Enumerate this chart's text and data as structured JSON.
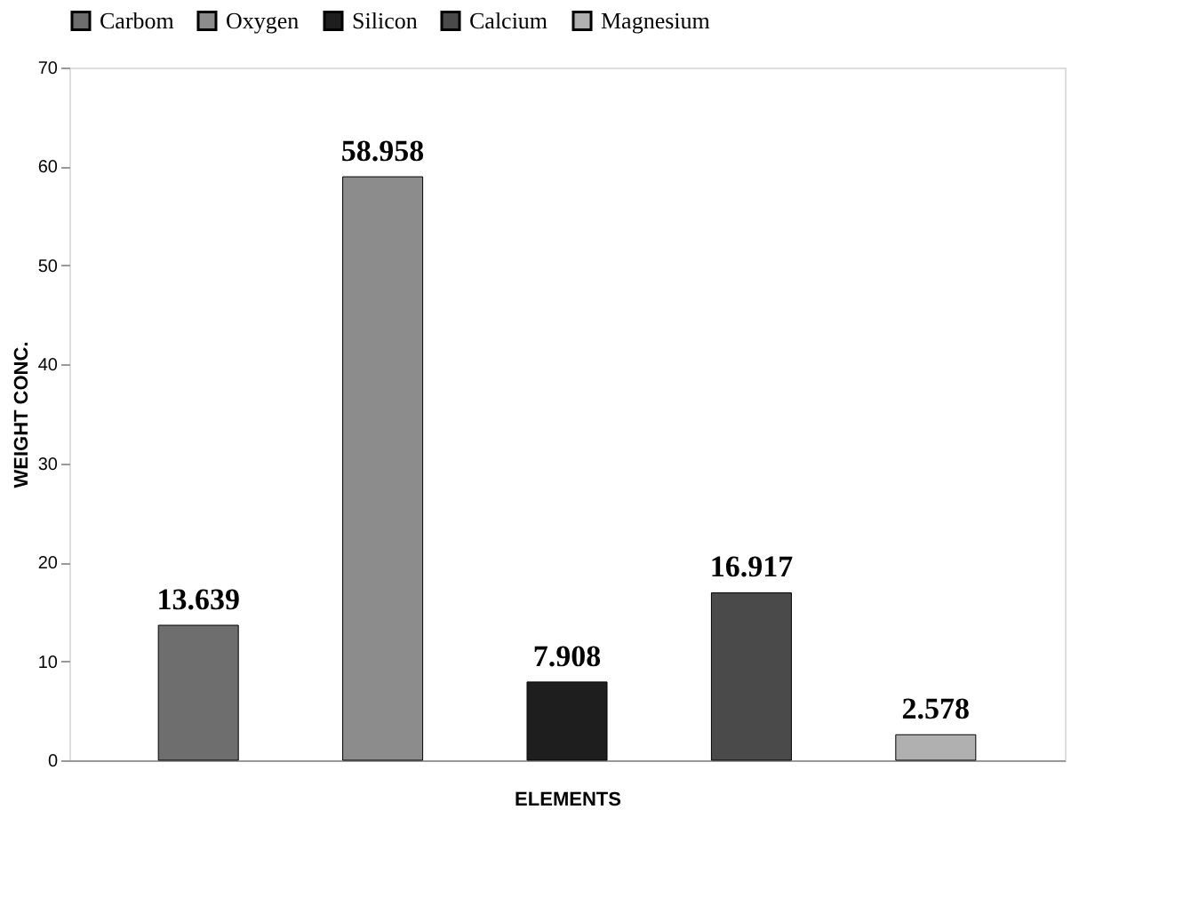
{
  "chart_data": {
    "type": "bar",
    "xlabel": "ELEMENTS",
    "ylabel": "WEIGHT CONC.",
    "categories": [
      null,
      null,
      null,
      null,
      null
    ],
    "series": [
      {
        "name": "Carbom",
        "color": "#6e6e6e",
        "values": [
          13.639,
          null,
          null,
          null,
          null
        ]
      },
      {
        "name": "Oxygen",
        "color": "#8c8c8c",
        "values": [
          null,
          58.958,
          null,
          null,
          null
        ]
      },
      {
        "name": "Silicon",
        "color": "#1e1e1e",
        "values": [
          null,
          null,
          7.908,
          null,
          null
        ]
      },
      {
        "name": "Calcium",
        "color": "#4a4a4a",
        "values": [
          null,
          null,
          null,
          16.917,
          null
        ]
      },
      {
        "name": "Magnesium",
        "color": "#b0b0b0",
        "values": [
          null,
          null,
          null,
          null,
          2.578
        ]
      }
    ],
    "ylim": [
      0,
      70
    ],
    "yticks": [
      0,
      10,
      20,
      30,
      40,
      50,
      60,
      70
    ],
    "grid": false,
    "legend": "top",
    "data_labels": true
  }
}
